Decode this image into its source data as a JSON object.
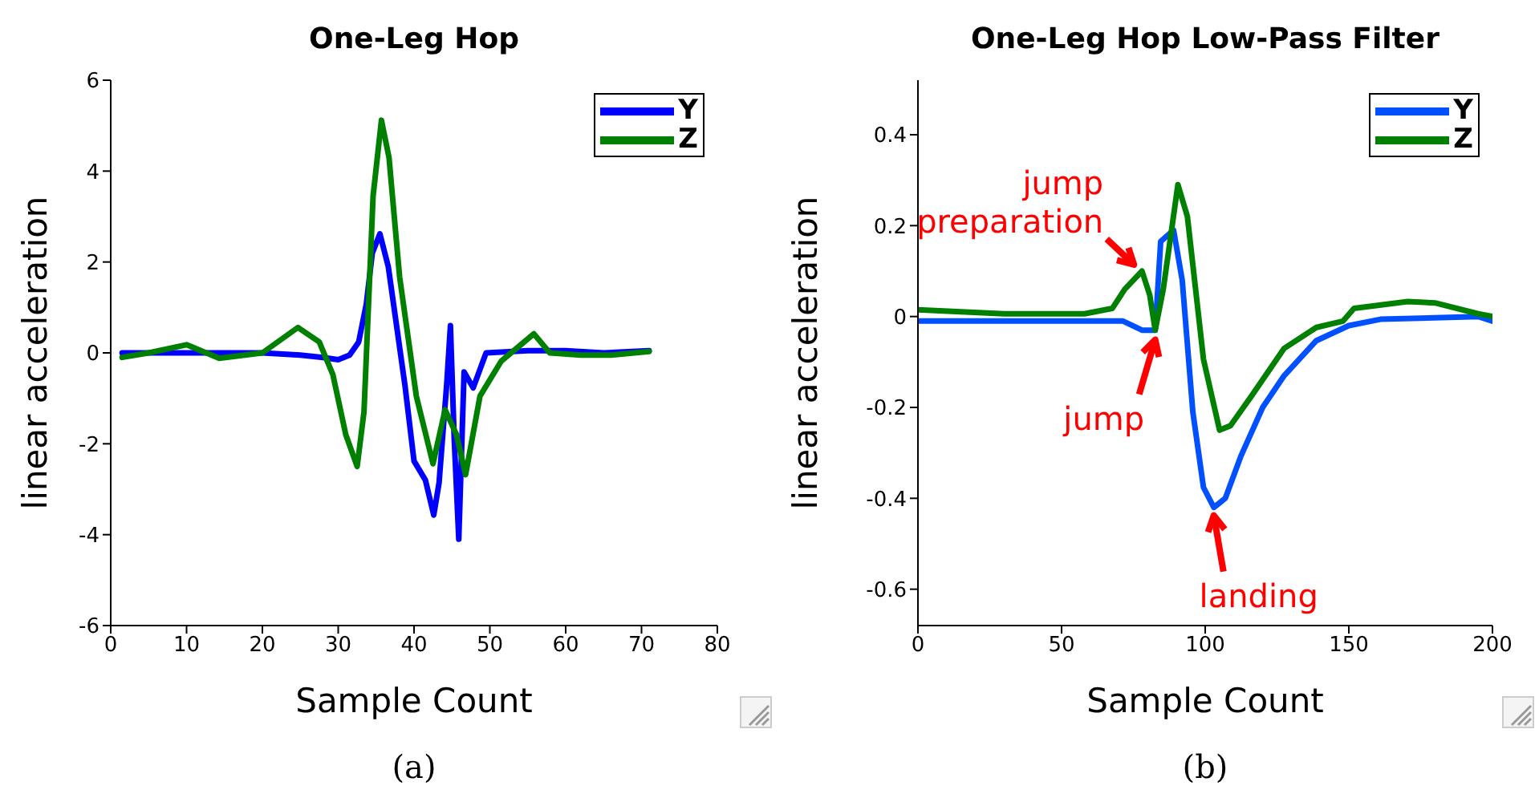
{
  "chart_data": [
    {
      "type": "line",
      "title": "One-Leg Hop",
      "xlabel": "Sample Count",
      "ylabel": "linear acceleration",
      "xlim": [
        0,
        80
      ],
      "xticks": [
        0,
        10,
        20,
        30,
        40,
        50,
        60,
        70,
        80
      ],
      "ylim": [
        -6,
        6
      ],
      "yticks": [
        -6,
        -4,
        -2,
        0,
        2,
        4,
        6
      ],
      "legend": "top right",
      "grid": false,
      "annotations": [
        "(a)"
      ],
      "series": [
        {
          "name": "Y",
          "color": "#0000ff",
          "x": [
            1.5,
            10,
            20,
            25,
            28,
            30,
            31.5,
            32.7,
            33.7,
            34.5,
            35.5,
            36.6,
            38.8,
            40,
            41.5,
            42.6,
            43.3,
            44.3,
            44.8,
            45.3,
            45.9,
            46.6,
            47.8,
            49.5,
            55,
            60,
            65,
            71
          ],
          "values": [
            0,
            0,
            0,
            -0.05,
            -0.1,
            -0.15,
            -0.05,
            0.24,
            1.07,
            2.2,
            2.62,
            1.9,
            -0.71,
            -2.38,
            -2.8,
            -3.57,
            -2.86,
            -0.71,
            0.6,
            -1.9,
            -4.1,
            -0.42,
            -0.77,
            0,
            0.05,
            0.05,
            0,
            0.05
          ]
        },
        {
          "name": "Z",
          "color": "#008000",
          "x": [
            1.5,
            5,
            10,
            14.3,
            20,
            24.7,
            27.5,
            29.3,
            31,
            32.5,
            33.4,
            34.6,
            35.7,
            36.7,
            38.1,
            40.3,
            42.5,
            44.1,
            45.6,
            46.8,
            48.7,
            51.5,
            55.8,
            57.9,
            62,
            66,
            71
          ],
          "values": [
            -0.1,
            0,
            0.18,
            -0.12,
            0,
            0.56,
            0.24,
            -0.48,
            -1.8,
            -2.5,
            -1.3,
            3.45,
            5.12,
            4.3,
            1.67,
            -0.95,
            -2.44,
            -1.25,
            -1.8,
            -2.68,
            -0.95,
            -0.18,
            0.42,
            0,
            -0.05,
            -0.05,
            0.03
          ]
        }
      ]
    },
    {
      "type": "line",
      "title": "One-Leg Hop Low-Pass Filter",
      "xlabel": "Sample Count",
      "ylabel": "linear acceleration",
      "xlim": [
        0,
        200
      ],
      "xticks": [
        0,
        50,
        100,
        150,
        200
      ],
      "ylim": [
        -0.68,
        0.52
      ],
      "yticks": [
        -0.6,
        -0.4,
        -0.2,
        0,
        0.2,
        0.4
      ],
      "legend": "top right",
      "grid": false,
      "annotations": [
        "(b)",
        {
          "text": "jump preparation",
          "x": 78,
          "y": 0.1
        },
        {
          "text": "jump",
          "x": 82.6,
          "y": -0.03
        },
        {
          "text": "landing",
          "x": 103,
          "y": -0.42
        }
      ],
      "series": [
        {
          "name": "Y",
          "color": "#0050ff",
          "x": [
            0,
            40,
            71.4,
            78,
            82.6,
            84.5,
            89,
            92,
            95.7,
            99.4,
            103,
            107,
            112.5,
            120,
            127.5,
            138.7,
            150,
            161,
            195,
            200
          ],
          "values": [
            -0.01,
            -0.01,
            -0.01,
            -0.03,
            -0.03,
            0.165,
            0.19,
            0.08,
            -0.21,
            -0.376,
            -0.42,
            -0.4,
            -0.306,
            -0.2,
            -0.13,
            -0.053,
            -0.02,
            -0.006,
            0,
            -0.01
          ]
        },
        {
          "name": "Z",
          "color": "#008000",
          "x": [
            0,
            30,
            58,
            67.7,
            72,
            78,
            80.7,
            82.6,
            85.4,
            90.5,
            93.8,
            99.4,
            105,
            108.8,
            116,
            127.5,
            138.7,
            148,
            151.8,
            170.5,
            180,
            195,
            200
          ],
          "values": [
            0.015,
            0.006,
            0.006,
            0.018,
            0.06,
            0.1,
            0.047,
            -0.03,
            0.06,
            0.29,
            0.22,
            -0.094,
            -0.25,
            -0.24,
            -0.176,
            -0.07,
            -0.024,
            -0.01,
            0.018,
            0.033,
            0.03,
            0.006,
            0
          ]
        }
      ]
    }
  ]
}
